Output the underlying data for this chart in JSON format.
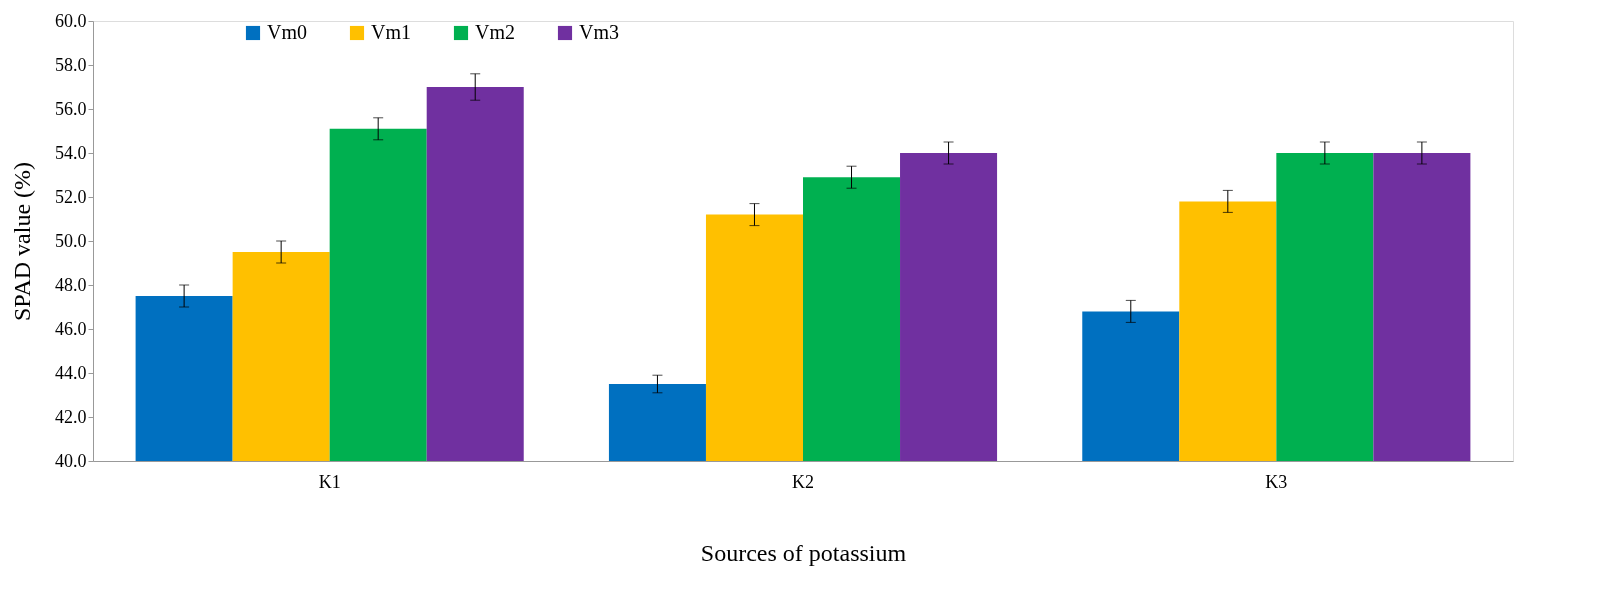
{
  "chart_data": {
    "type": "bar",
    "xlabel": "Sources of potassium",
    "ylabel": "SPAD value (%)",
    "categories": [
      "K1",
      "K2",
      "K3"
    ],
    "series": [
      {
        "name": "Vm0",
        "color": "#0070c0",
        "values": [
          47.5,
          43.5,
          46.8
        ],
        "errors": [
          0.5,
          0.4,
          0.5
        ]
      },
      {
        "name": "Vm1",
        "color": "#ffc000",
        "values": [
          49.5,
          51.2,
          51.8
        ],
        "errors": [
          0.5,
          0.5,
          0.5
        ]
      },
      {
        "name": "Vm2",
        "color": "#00b050",
        "values": [
          55.1,
          52.9,
          54.0
        ],
        "errors": [
          0.5,
          0.5,
          0.5
        ]
      },
      {
        "name": "Vm3",
        "color": "#7030a0",
        "values": [
          57.0,
          54.0,
          54.0
        ],
        "errors": [
          0.6,
          0.5,
          0.5
        ]
      }
    ],
    "ylim": [
      40,
      60
    ],
    "yticks": [
      {
        "value": 40,
        "label": "40.0"
      },
      {
        "value": 42,
        "label": "42.0"
      },
      {
        "value": 44,
        "label": "44.0"
      },
      {
        "value": 46,
        "label": "46.0"
      },
      {
        "value": 48,
        "label": "48.0"
      },
      {
        "value": 50,
        "label": "50.0"
      },
      {
        "value": 52,
        "label": "52.0"
      },
      {
        "value": 54,
        "label": "54.0"
      },
      {
        "value": 56,
        "label": "56.0"
      },
      {
        "value": 58,
        "label": "58.0"
      },
      {
        "value": 60,
        "label": "60.0"
      }
    ],
    "grid": false,
    "legend": "top left"
  }
}
